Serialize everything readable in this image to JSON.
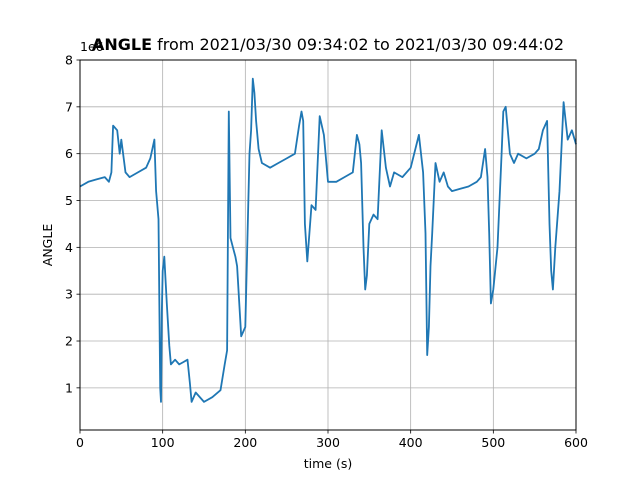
{
  "chart_data": {
    "type": "line",
    "title_bold": "ANGLE",
    "title_rest": " from 2021/03/30 09:34:02 to 2021/03/30 09:44:02",
    "xlabel": "time (s)",
    "ylabel": "ANGLE",
    "y_offset_label": "1e6",
    "xlim": [
      0,
      600
    ],
    "ylim": [
      0.1,
      8.0
    ],
    "x_ticks": [
      0,
      100,
      200,
      300,
      400,
      500,
      600
    ],
    "y_ticks": [
      1,
      2,
      3,
      4,
      5,
      6,
      7,
      8
    ],
    "x_tick_labels": [
      "0",
      "100",
      "200",
      "300",
      "400",
      "500",
      "600"
    ],
    "y_tick_labels": [
      "1",
      "2",
      "3",
      "4",
      "5",
      "6",
      "7",
      "8"
    ],
    "grid": true,
    "color": "#1f77b4",
    "series": [
      {
        "x": [
          0,
          10,
          20,
          30,
          35,
          38,
          40,
          45,
          48,
          50,
          55,
          60,
          70,
          80,
          85,
          90,
          92,
          95,
          97,
          98,
          99,
          100,
          102,
          105,
          108,
          110,
          115,
          120,
          125,
          130,
          133,
          135,
          140,
          150,
          160,
          170,
          175,
          178,
          180,
          182,
          185,
          188,
          190,
          195,
          200,
          205,
          207,
          209,
          211,
          213,
          216,
          220,
          230,
          240,
          250,
          260,
          265,
          268,
          270,
          272,
          275,
          280,
          285,
          290,
          295,
          300,
          310,
          320,
          330,
          335,
          338,
          340,
          343,
          345,
          347,
          350,
          355,
          360,
          365,
          370,
          375,
          380,
          390,
          400,
          410,
          415,
          418,
          420,
          422,
          424,
          426,
          430,
          435,
          440,
          445,
          450,
          460,
          470,
          480,
          485,
          490,
          493,
          495,
          497,
          500,
          505,
          510,
          512,
          515,
          520,
          525,
          530,
          540,
          550,
          555,
          560,
          565,
          568,
          570,
          572,
          575,
          580,
          585,
          590,
          595,
          600
        ],
        "y": [
          5.3,
          5.4,
          5.45,
          5.5,
          5.4,
          5.6,
          6.6,
          6.5,
          6.0,
          6.3,
          5.6,
          5.5,
          5.6,
          5.7,
          5.9,
          6.3,
          5.2,
          4.6,
          1.0,
          0.7,
          2.6,
          3.5,
          3.8,
          2.8,
          1.9,
          1.5,
          1.6,
          1.5,
          1.55,
          1.6,
          1.1,
          0.7,
          0.9,
          0.7,
          0.8,
          0.95,
          1.5,
          1.8,
          6.9,
          4.2,
          4.0,
          3.8,
          3.6,
          2.1,
          2.3,
          6.0,
          6.5,
          7.6,
          7.3,
          6.7,
          6.1,
          5.8,
          5.7,
          5.8,
          5.9,
          6.0,
          6.6,
          6.9,
          6.7,
          4.5,
          3.7,
          4.9,
          4.8,
          6.8,
          6.4,
          5.4,
          5.4,
          5.5,
          5.6,
          6.4,
          6.2,
          5.8,
          4.0,
          3.1,
          3.4,
          4.5,
          4.7,
          4.6,
          6.5,
          5.7,
          5.3,
          5.6,
          5.5,
          5.7,
          6.4,
          5.6,
          4.3,
          1.7,
          2.3,
          3.6,
          4.3,
          5.8,
          5.4,
          5.6,
          5.3,
          5.2,
          5.25,
          5.3,
          5.4,
          5.5,
          6.1,
          5.5,
          4.3,
          2.8,
          3.1,
          4.0,
          6.0,
          6.9,
          7.0,
          6.0,
          5.8,
          6.0,
          5.9,
          6.0,
          6.1,
          6.5,
          6.7,
          4.5,
          3.5,
          3.1,
          4.0,
          5.2,
          7.1,
          6.3,
          6.5,
          6.2
        ]
      }
    ]
  }
}
